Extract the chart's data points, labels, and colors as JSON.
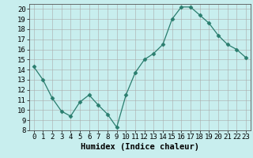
{
  "x": [
    0,
    1,
    2,
    3,
    4,
    5,
    6,
    7,
    8,
    9,
    10,
    11,
    12,
    13,
    14,
    15,
    16,
    17,
    18,
    19,
    20,
    21,
    22,
    23
  ],
  "y": [
    14.3,
    13.0,
    11.2,
    9.9,
    9.4,
    10.8,
    11.5,
    10.5,
    9.6,
    8.3,
    11.5,
    13.7,
    15.0,
    15.6,
    16.5,
    19.0,
    20.2,
    20.2,
    19.4,
    18.6,
    17.4,
    16.5,
    16.0,
    15.2
  ],
  "xlabel": "Humidex (Indice chaleur)",
  "line_color": "#2a7d6e",
  "marker": "D",
  "marker_size": 2.5,
  "bg_color": "#c8eeee",
  "grid_color": "#aaaaaa",
  "ylim": [
    8,
    20.5
  ],
  "xlim": [
    -0.5,
    23.5
  ],
  "yticks": [
    8,
    9,
    10,
    11,
    12,
    13,
    14,
    15,
    16,
    17,
    18,
    19,
    20
  ],
  "xticks": [
    0,
    1,
    2,
    3,
    4,
    5,
    6,
    7,
    8,
    9,
    10,
    11,
    12,
    13,
    14,
    15,
    16,
    17,
    18,
    19,
    20,
    21,
    22,
    23
  ],
  "tick_fontsize": 6.5,
  "xlabel_fontsize": 7.5
}
